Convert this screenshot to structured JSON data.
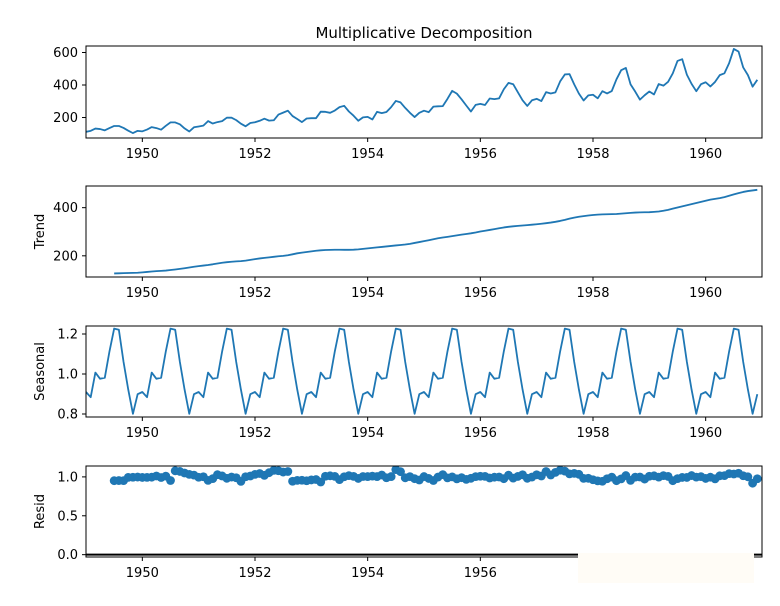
{
  "chart_data": {
    "type": "line",
    "title": "Multiplicative Decomposition",
    "x_start": 1949.0,
    "x_step": 0.0833333,
    "xlim": [
      1949.0,
      1961.0
    ],
    "xticks": [
      1950,
      1952,
      1954,
      1956,
      1958,
      1960
    ],
    "xtick_labels": [
      "1950",
      "1952",
      "1954",
      "1956",
      "1958",
      "1960"
    ],
    "resid_xtick_labels": [
      "1950",
      "1952",
      "1954",
      "1956"
    ],
    "colors": {
      "series": "#1f77b4",
      "axis": "#000000"
    },
    "panels": [
      {
        "name": "observed",
        "ylabel": "",
        "ylim": [
          74,
          640
        ],
        "yticks": [
          200,
          400,
          600
        ],
        "ytick_labels": [
          "200",
          "400",
          "600"
        ],
        "style": "line",
        "values": [
          112,
          118,
          132,
          129,
          121,
          135,
          148,
          148,
          136,
          119,
          104,
          118,
          115,
          126,
          141,
          135,
          125,
          149,
          170,
          170,
          158,
          133,
          114,
          140,
          145,
          150,
          178,
          163,
          172,
          178,
          199,
          199,
          184,
          162,
          146,
          166,
          171,
          180,
          193,
          181,
          183,
          218,
          230,
          242,
          209,
          191,
          172,
          194,
          196,
          196,
          236,
          235,
          229,
          243,
          264,
          272,
          237,
          211,
          180,
          201,
          204,
          188,
          235,
          227,
          234,
          264,
          302,
          293,
          259,
          229,
          203,
          229,
          242,
          233,
          267,
          269,
          270,
          315,
          364,
          347,
          312,
          274,
          237,
          278,
          284,
          277,
          317,
          313,
          318,
          374,
          413,
          405,
          355,
          306,
          271,
          306,
          315,
          301,
          356,
          348,
          355,
          422,
          465,
          467,
          404,
          347,
          305,
          336,
          340,
          318,
          362,
          348,
          363,
          435,
          491,
          505,
          404,
          359,
          310,
          337,
          360,
          342,
          406,
          396,
          420,
          472,
          548,
          559,
          463,
          407,
          362,
          405,
          417,
          391,
          419,
          461,
          472,
          535,
          622,
          606,
          508,
          461,
          390,
          432
        ]
      },
      {
        "name": "trend",
        "ylabel": "Trend",
        "ylim": [
          112,
          490
        ],
        "yticks": [
          200,
          400
        ],
        "ytick_labels": [
          "200",
          "400"
        ],
        "style": "line",
        "offset": 6,
        "values": [
          126.79,
          127.25,
          127.96,
          128.58,
          129.0,
          129.75,
          131.25,
          133.08,
          134.92,
          136.42,
          137.42,
          138.75,
          140.92,
          143.17,
          145.71,
          148.42,
          151.54,
          154.71,
          157.12,
          159.54,
          161.83,
          164.75,
          168.17,
          171.25,
          173.58,
          175.46,
          176.83,
          178.04,
          180.17,
          183.12,
          186.21,
          189.04,
          191.29,
          193.58,
          195.83,
          198.04,
          199.75,
          202.21,
          206.25,
          210.42,
          213.38,
          215.83,
          218.5,
          220.92,
          222.92,
          224.08,
          224.71,
          225.33,
          225.33,
          224.96,
          224.92,
          225.38,
          226.88,
          228.96,
          231.0,
          233.0,
          235.0,
          236.96,
          238.92,
          241.12,
          243.12,
          245.04,
          247.08,
          249.75,
          253.5,
          257.12,
          260.83,
          264.75,
          268.83,
          272.88,
          276.21,
          278.83,
          281.62,
          284.71,
          287.88,
          290.75,
          293.42,
          296.83,
          300.92,
          304.33,
          307.42,
          310.75,
          314.33,
          317.83,
          320.42,
          322.5,
          324.29,
          325.88,
          327.38,
          329.25,
          331.17,
          333.29,
          335.58,
          338.17,
          341.25,
          344.92,
          349.21,
          354.25,
          358.71,
          362.08,
          365.0,
          367.58,
          369.67,
          371.25,
          372.0,
          372.54,
          373.04,
          373.75,
          375.17,
          376.92,
          378.5,
          379.62,
          380.54,
          380.92,
          381.29,
          382.62,
          384.21,
          387.04,
          391.04,
          395.92,
          400.88,
          405.54,
          410.0,
          414.62,
          419.42,
          423.96,
          428.67,
          433.25,
          436.54,
          439.62,
          443.92,
          449.42,
          455.04,
          460.42,
          465.33,
          469.0,
          471.5,
          474.21
        ]
      },
      {
        "name": "seasonal",
        "ylabel": "Seasonal",
        "ylim": [
          0.785,
          1.24
        ],
        "yticks": [
          0.8,
          1.0,
          1.2
        ],
        "ytick_labels": [
          "0.8",
          "1.0",
          "1.2"
        ],
        "style": "line",
        "pattern": [
          0.91,
          0.884,
          1.007,
          0.976,
          0.981,
          1.113,
          1.227,
          1.221,
          1.06,
          0.922,
          0.801,
          0.899
        ]
      },
      {
        "name": "resid",
        "ylabel": "Resid",
        "ylim": [
          -0.03,
          1.14
        ],
        "yticks": [
          0.0,
          0.5,
          1.0
        ],
        "ytick_labels": [
          "0.0",
          "0.5",
          "1.0"
        ],
        "style": "scatter",
        "offset": 6,
        "baseline": 0.0,
        "values": [
          0.951,
          0.953,
          0.952,
          0.994,
          0.995,
          0.998,
          0.993,
          0.994,
          0.996,
          1.011,
          0.992,
          1.01,
          0.954,
          1.078,
          1.07,
          1.05,
          1.032,
          1.023,
          0.995,
          1.002,
          0.955,
          0.978,
          1.028,
          1.012,
          0.982,
          0.998,
          0.989,
          0.942,
          1.002,
          1.011,
          1.032,
          1.044,
          1.02,
          1.054,
          1.084,
          1.079,
          1.062,
          1.069,
          0.944,
          0.955,
          0.957,
          0.95,
          0.961,
          0.966,
          0.934,
          1.008,
          1.014,
          1.007,
          0.965,
          1.002,
          1.016,
          1.007,
          0.98,
          1.005,
          1.004,
          1.01,
          1.004,
          1.024,
          0.989,
          1.004,
          1.093,
          1.067,
          0.988,
          1.003,
          0.977,
          0.96,
          1.004,
          0.98,
          0.954,
          0.998,
          1.029,
          0.987,
          1.0,
          0.975,
          0.99,
          0.968,
          0.982,
          1.003,
          1.008,
          1.007,
          0.986,
          0.996,
          0.999,
          0.977,
          1.022,
          0.984,
          1.006,
          1.027,
          0.982,
          0.998,
          1.027,
          1.011,
          1.069,
          1.024,
          1.058,
          1.085,
          1.074,
          1.039,
          1.045,
          1.033,
          0.981,
          0.982,
          0.963,
          0.949,
          0.944,
          0.976,
          0.997,
          0.951,
          0.974,
          1.017,
          0.955,
          0.997,
          0.999,
          0.972,
          1.008,
          1.014,
          0.997,
          1.016,
          1.006,
          0.951,
          0.978,
          0.993,
          0.993,
          1.017,
          0.997,
          1.003,
          0.98,
          0.996,
          0.975,
          1.014,
          1.016,
          1.042,
          1.037,
          1.047,
          1.015,
          1.001,
          0.919,
          0.976
        ]
      }
    ]
  }
}
